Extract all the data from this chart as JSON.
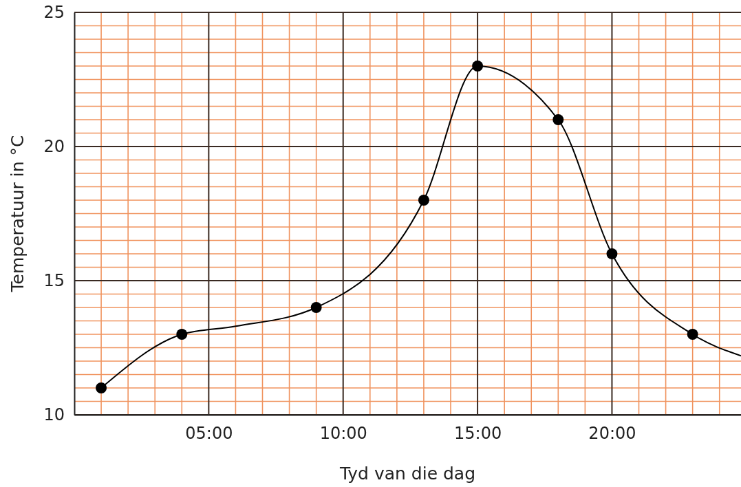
{
  "chart_data": {
    "type": "scatter",
    "xlabel": "Tyd van die dag",
    "ylabel": "Temperatuur in °C",
    "xlim": [
      0,
      24.8
    ],
    "ylim": [
      10,
      25
    ],
    "xticks": [
      {
        "value": 1,
        "label": null
      },
      {
        "value": 2,
        "label": null
      },
      {
        "value": 3,
        "label": null
      },
      {
        "value": 4,
        "label": null
      },
      {
        "value": 5,
        "label": "05:00"
      },
      {
        "value": 6,
        "label": null
      },
      {
        "value": 7,
        "label": null
      },
      {
        "value": 8,
        "label": null
      },
      {
        "value": 9,
        "label": null
      },
      {
        "value": 10,
        "label": "10:00"
      },
      {
        "value": 11,
        "label": null
      },
      {
        "value": 12,
        "label": null
      },
      {
        "value": 13,
        "label": null
      },
      {
        "value": 14,
        "label": null
      },
      {
        "value": 15,
        "label": "15:00"
      },
      {
        "value": 16,
        "label": null
      },
      {
        "value": 17,
        "label": null
      },
      {
        "value": 18,
        "label": null
      },
      {
        "value": 19,
        "label": null
      },
      {
        "value": 20,
        "label": "20:00"
      },
      {
        "value": 21,
        "label": null
      },
      {
        "value": 22,
        "label": null
      },
      {
        "value": 23,
        "label": null
      },
      {
        "value": 24,
        "label": null
      }
    ],
    "yticks": [
      10,
      {
        "value": 10.5,
        "label": null
      },
      {
        "value": 11,
        "label": null
      },
      {
        "value": 11.5,
        "label": null
      },
      {
        "value": 12,
        "label": null
      },
      {
        "value": 12.5,
        "label": null
      },
      {
        "value": 13,
        "label": null
      },
      {
        "value": 13.5,
        "label": null
      },
      {
        "value": 14,
        "label": null
      },
      {
        "value": 14.5,
        "label": null
      },
      15,
      {
        "value": 15.5,
        "label": null
      },
      {
        "value": 16,
        "label": null
      },
      {
        "value": 16.5,
        "label": null
      },
      {
        "value": 17,
        "label": null
      },
      {
        "value": 17.5,
        "label": null
      },
      {
        "value": 18,
        "label": null
      },
      {
        "value": 18.5,
        "label": null
      },
      {
        "value": 19,
        "label": null
      },
      {
        "value": 19.5,
        "label": null
      },
      20,
      {
        "value": 20.5,
        "label": null
      },
      {
        "value": 21,
        "label": null
      },
      {
        "value": 21.5,
        "label": null
      },
      {
        "value": 22,
        "label": null
      },
      {
        "value": 22.5,
        "label": null
      },
      {
        "value": 23,
        "label": null
      },
      {
        "value": 23.5,
        "label": null
      },
      {
        "value": 24,
        "label": null
      },
      {
        "value": 24.5,
        "label": null
      },
      25
    ],
    "grid": true,
    "series": [
      {
        "type": "line",
        "color": "#000000",
        "marker": "none",
        "x": [
          1,
          4,
          6,
          9,
          13,
          15,
          18,
          20,
          23,
          24.8
        ],
        "values": [
          11,
          13,
          13.3,
          14,
          18,
          23,
          21,
          16,
          13,
          12.2
        ]
      },
      {
        "type": "scatter",
        "color": "#000000",
        "marker": "circle",
        "x": [
          1,
          4,
          9,
          13,
          15,
          18,
          20,
          23
        ],
        "values": [
          11,
          13,
          14,
          18,
          23,
          21,
          16,
          13
        ]
      }
    ]
  }
}
